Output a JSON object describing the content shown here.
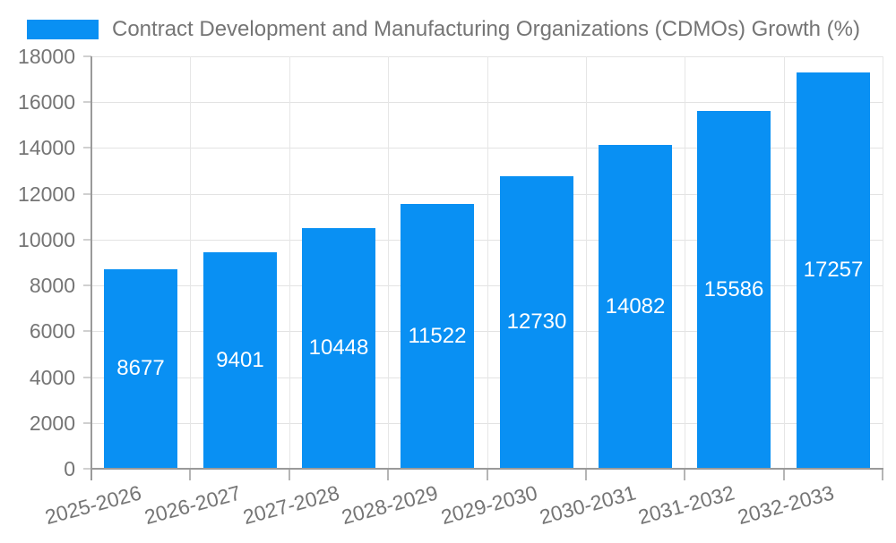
{
  "legend": {
    "label": "Contract Development and Manufacturing Organizations (CDMOs) Growth (%)"
  },
  "chart_data": {
    "type": "bar",
    "title": "Contract Development and Manufacturing Organizations (CDMOs) Growth (%)",
    "categories": [
      "2025-2026",
      "2026-2027",
      "2027-2028",
      "2028-2029",
      "2029-2030",
      "2030-2031",
      "2031-2032",
      "2032-2033"
    ],
    "values": [
      8677,
      9401,
      10448,
      11522,
      12730,
      14082,
      15586,
      17257
    ],
    "value_labels": [
      "8677",
      "9401",
      "10448",
      "11522",
      "12730",
      "14082",
      "15586",
      "17257"
    ],
    "xlabel": "",
    "ylabel": "",
    "ylim": [
      0,
      18000
    ],
    "y_ticks": [
      0,
      2000,
      4000,
      6000,
      8000,
      10000,
      12000,
      14000,
      16000,
      18000
    ],
    "grid": true,
    "legend_position": "top-left",
    "colors": {
      "bar": "#0990f3",
      "value_label": "#ffffff",
      "axis_text": "#757575",
      "gridline": "#e3e3e3",
      "axis_line": "#9a9a9a"
    }
  }
}
